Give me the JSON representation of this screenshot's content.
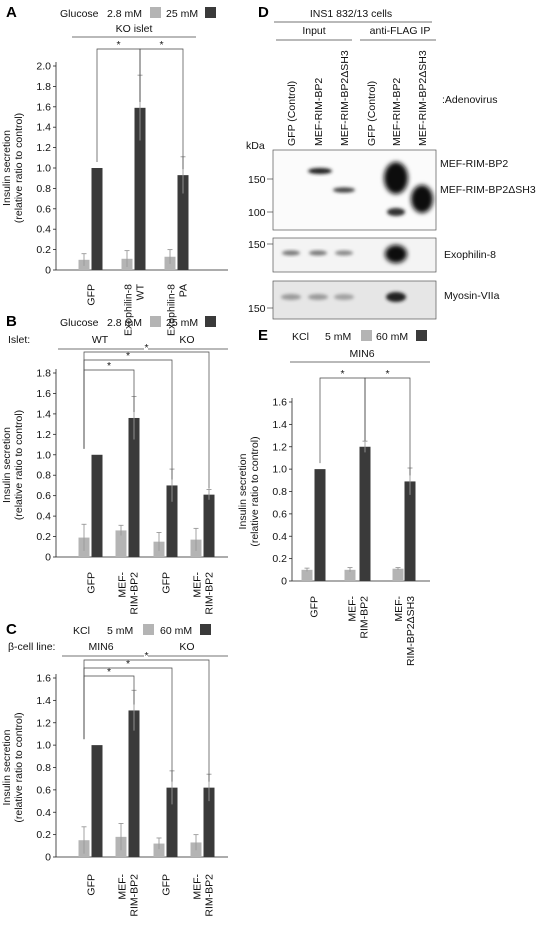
{
  "panels": {
    "A": {
      "letter": "A",
      "legend_prefix": "Glucose",
      "legend_low": "2.8 mM",
      "legend_high": "25 mM",
      "group_label": "KO islet"
    },
    "B": {
      "letter": "B",
      "legend_prefix": "Glucose",
      "legend_low": "2.8 mM",
      "legend_high": "25 mM",
      "row_label": "Islet:",
      "group1": "WT",
      "group2": "KO"
    },
    "C": {
      "letter": "C",
      "legend_prefix": "KCl",
      "legend_low": "5 mM",
      "legend_high": "60 mM",
      "row_label": "β-cell line:",
      "group1": "MIN6",
      "group2": "KO"
    },
    "D": {
      "letter": "D",
      "title": "INS1 832/13 cells",
      "input_label": "Input",
      "ip_label": "anti-FLAG IP",
      "lanes": [
        "GFP (Control)",
        "MEF-RIM-BP2",
        "MEF-RIM-BP2ΔSH3",
        "GFP (Control)",
        "MEF-RIM-BP2",
        "MEF-RIM-BP2ΔSH3"
      ],
      "adenovirus_label": ":Adenovirus",
      "kda_label": "kDa",
      "blot1_markers": [
        "150",
        "100"
      ],
      "blot2_marker": "150",
      "blot3_marker": "150",
      "band_label_1": "MEF-RIM-BP2",
      "band_label_2": "MEF-RIM-BP2ΔSH3",
      "blot2_label": "Exophilin-8",
      "blot3_label": "Myosin-VIIa"
    },
    "E": {
      "letter": "E",
      "legend_prefix": "KCl",
      "legend_low": "5 mM",
      "legend_high": "60 mM",
      "group_label": "MIN6"
    }
  },
  "colors": {
    "low": "#b4b4b4",
    "high": "#3a3a3a"
  },
  "significance_marker": "*",
  "chart_data": [
    {
      "id": "A",
      "type": "bar",
      "ylabel": "Insulin secretion (relative ratio to control)",
      "ylim": [
        0,
        2.0
      ],
      "yticks": [
        "0",
        "0.2",
        "0.4",
        "0.6",
        "0.8",
        "1.0",
        "1.2",
        "1.4",
        "1.6",
        "1.8",
        "2.0"
      ],
      "categories": [
        "GFP",
        "Exophilin-8 WT",
        "Exophilin-8 PA"
      ],
      "series": [
        {
          "name": "2.8 mM",
          "values": [
            0.1,
            0.11,
            0.13
          ],
          "errors": [
            0.06,
            0.08,
            0.07
          ]
        },
        {
          "name": "25 mM",
          "values": [
            1.0,
            1.59,
            0.93
          ],
          "errors": [
            0,
            0.32,
            0.18
          ]
        }
      ]
    },
    {
      "id": "B",
      "type": "bar",
      "ylabel": "Insulin secretion (relative ratio to control)",
      "ylim": [
        0,
        1.8
      ],
      "yticks": [
        "0",
        "0.2",
        "0.4",
        "0.6",
        "0.8",
        "1.0",
        "1.2",
        "1.4",
        "1.6",
        "1.8"
      ],
      "categories": [
        "GFP",
        "MEF-RIM-BP2",
        "GFP",
        "MEF-RIM-BP2"
      ],
      "series": [
        {
          "name": "2.8 mM",
          "values": [
            0.19,
            0.26,
            0.15,
            0.17
          ],
          "errors": [
            0.13,
            0.05,
            0.09,
            0.11
          ]
        },
        {
          "name": "25 mM",
          "values": [
            1.0,
            1.36,
            0.7,
            0.61
          ],
          "errors": [
            0,
            0.21,
            0.16,
            0.05
          ]
        }
      ]
    },
    {
      "id": "C",
      "type": "bar",
      "ylabel": "Insulin secretion (relative ratio to control)",
      "ylim": [
        0,
        1.6
      ],
      "yticks": [
        "0",
        "0.2",
        "0.4",
        "0.6",
        "0.8",
        "1.0",
        "1.2",
        "1.4",
        "1.6"
      ],
      "categories": [
        "GFP",
        "MEF-RIM-BP2",
        "GFP",
        "MEF-RIM-BP2"
      ],
      "series": [
        {
          "name": "5 mM",
          "values": [
            0.15,
            0.18,
            0.12,
            0.13
          ],
          "errors": [
            0.12,
            0.12,
            0.05,
            0.07
          ]
        },
        {
          "name": "60 mM",
          "values": [
            1.0,
            1.31,
            0.62,
            0.62
          ],
          "errors": [
            0,
            0.18,
            0.15,
            0.12
          ]
        }
      ]
    },
    {
      "id": "E",
      "type": "bar",
      "ylabel": "Insulin secretion (relative ratio to control)",
      "ylim": [
        0,
        1.6
      ],
      "yticks": [
        "0",
        "0.2",
        "0.4",
        "0.6",
        "0.8",
        "1.0",
        "1.2",
        "1.4",
        "1.6"
      ],
      "categories": [
        "GFP",
        "MEF-RIM-BP2",
        "MEF-RIM-BP2ΔSH3"
      ],
      "series": [
        {
          "name": "5 mM",
          "values": [
            0.1,
            0.1,
            0.11
          ],
          "errors": [
            0.015,
            0.02,
            0.01
          ]
        },
        {
          "name": "60 mM",
          "values": [
            1.0,
            1.2,
            0.89
          ],
          "errors": [
            0,
            0.05,
            0.12
          ]
        }
      ]
    }
  ]
}
